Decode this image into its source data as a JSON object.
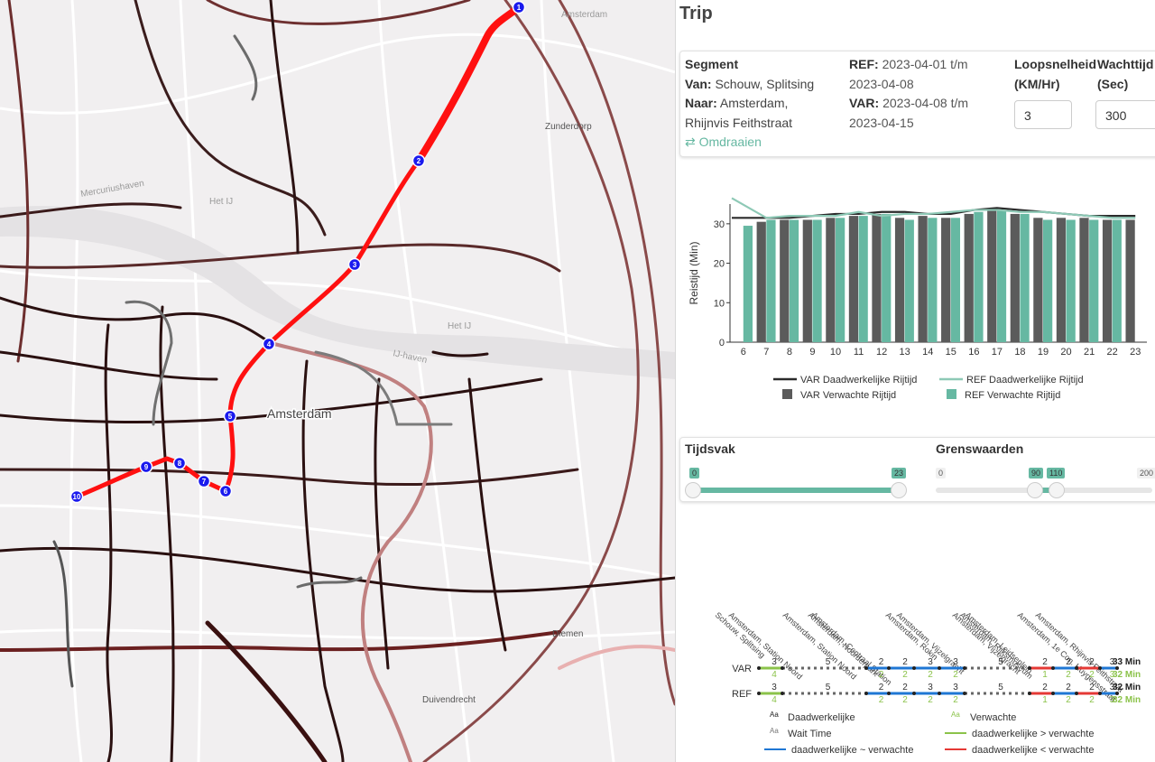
{
  "map": {
    "labels": {
      "amsterdam_top": "Amsterdam",
      "zunderdorp": "Zunderdorp",
      "mercuriushaven": "Mercuriushaven",
      "het_ij_west": "Het IJ",
      "het_ij_east": "Het IJ",
      "ij_haven": "IJ-haven",
      "amsterdam_center": "Amsterdam",
      "diemen": "Diemen",
      "duivendrecht": "Duivendrecht"
    },
    "markers": [
      "1",
      "2",
      "3",
      "4",
      "5",
      "6",
      "7",
      "8",
      "9",
      "10"
    ],
    "colors": {
      "route": "#ff0000",
      "marker": "#1a1aee",
      "background": "#f1eff0"
    }
  },
  "panel": {
    "title": "Trip",
    "segment": {
      "heading": "Segment",
      "van_label": "Van:",
      "van_value": "Schouw, Splitsing",
      "naar_label": "Naar:",
      "naar_value_1": "Amsterdam,",
      "naar_value_2": "Rhijnvis Feithstraat",
      "swap_icon": "swap-arrows-icon",
      "swap_label": "Omdraaien"
    },
    "periods": {
      "ref_label": "REF:",
      "ref_value_1": "2023-04-01 t/m",
      "ref_value_2": "2023-04-08",
      "var_label": "VAR:",
      "var_value_1": "2023-04-08 t/m",
      "var_value_2": "2023-04-15"
    },
    "walk_speed": {
      "label_1": "Loopsnelheid",
      "label_2": "(KM/Hr)",
      "value": "3"
    },
    "wait_time": {
      "label_1": "Wachttijd",
      "label_2": "(Sec)",
      "value": "300"
    },
    "sliders": {
      "tijdsvak": {
        "label": "Tijdsvak",
        "min_value": "0",
        "max_value": "23"
      },
      "grens": {
        "label": "Grenswaarden",
        "min": "0",
        "low": "90",
        "high": "110",
        "max": "200"
      }
    }
  },
  "chart_data": {
    "type": "bar",
    "categories": [
      "6",
      "7",
      "8",
      "9",
      "10",
      "11",
      "12",
      "13",
      "14",
      "15",
      "16",
      "17",
      "18",
      "19",
      "20",
      "21",
      "22",
      "23"
    ],
    "ylabel": "Reistijd (Min)",
    "yticks": [
      "0",
      "10",
      "20",
      "30"
    ],
    "ylim": [
      0,
      35
    ],
    "series": [
      {
        "name": "VAR Verwachte Rijtijd",
        "kind": "bar",
        "color": "#5b5b5b",
        "values": [
          null,
          30.5,
          31,
          31,
          31.5,
          32,
          32.5,
          31.5,
          32,
          31.5,
          32.5,
          33.5,
          32.5,
          31.5,
          31.5,
          31.5,
          31,
          31
        ]
      },
      {
        "name": "REF Verwachte Rijtijd",
        "kind": "bar",
        "color": "#66b8a2",
        "values": [
          29.5,
          31,
          31,
          31,
          31.5,
          32,
          32.5,
          31,
          31.5,
          31.5,
          33,
          33.5,
          32.5,
          31,
          31,
          31,
          31,
          null
        ]
      },
      {
        "name": "VAR Daadwerkelijke Rijtijd",
        "kind": "line",
        "color": "#2b2b2b",
        "values": [
          31.5,
          31.5,
          31.5,
          32,
          32.5,
          32.5,
          33,
          33,
          32.5,
          32.5,
          33.5,
          34,
          33.5,
          33,
          32.5,
          32,
          32,
          32
        ]
      },
      {
        "name": "REF Daadwerkelijke Rijtijd",
        "kind": "line",
        "color": "#8ec9b6",
        "values": [
          36.5,
          31.5,
          32,
          32,
          32,
          33,
          32,
          32.5,
          32.5,
          33,
          33.5,
          33.5,
          33,
          33,
          32.5,
          32,
          31.5,
          31.5
        ]
      }
    ],
    "legend_position": "bottom"
  },
  "timeline": {
    "stops": [
      "Schouw, Splitsing",
      "Amsterdam, Station Noord",
      "Amsterdam, Station Noord",
      "Amsterdam, Noorderpark",
      "Amsterdam, Centraal Station",
      "Amsterdam, Rokin",
      "Amsterdam, Vijzelgracht",
      "Amsterdam, Vijzelgracht",
      "Amsterdam, Rijksmuseum",
      "Amsterdam, Leidseplein",
      "Amsterdam, 1e Con. Huygensstraat",
      "Amsterdam, Rhijnvis Feithstraat"
    ],
    "rows": [
      {
        "label": "VAR",
        "actual": [
          "3",
          "5",
          "2",
          "2",
          "3",
          "3",
          "5",
          "2",
          "2",
          "2",
          "3"
        ],
        "expected": [
          "4",
          "",
          "2",
          "2",
          "2",
          "2",
          "",
          "1",
          "2",
          "2",
          "3"
        ],
        "total_actual": "33 Min",
        "total_expected": "32 Min"
      },
      {
        "label": "REF",
        "actual": [
          "3",
          "5",
          "2",
          "2",
          "3",
          "3",
          "5",
          "2",
          "2",
          "2",
          "3"
        ],
        "expected": [
          "4",
          "",
          "2",
          "2",
          "2",
          "2",
          "",
          "1",
          "2",
          "2",
          "3"
        ],
        "total_actual": "32 Min",
        "total_expected": "32 Min"
      }
    ],
    "legend": {
      "aa": "Aa",
      "actual": "Daadwerkelijke",
      "wait": "Wait Time",
      "expected": "Verwachte",
      "approx": "daadwerkelijke ~ verwachte",
      "greater": "daadwerkelijke  > verwachte",
      "less": "daadwerkelijke  < verwachte"
    },
    "colors": {
      "approx": "#1f77d4",
      "greater": "#8bc34a",
      "less": "#e53935",
      "expected_text": "#8bc34a"
    }
  }
}
